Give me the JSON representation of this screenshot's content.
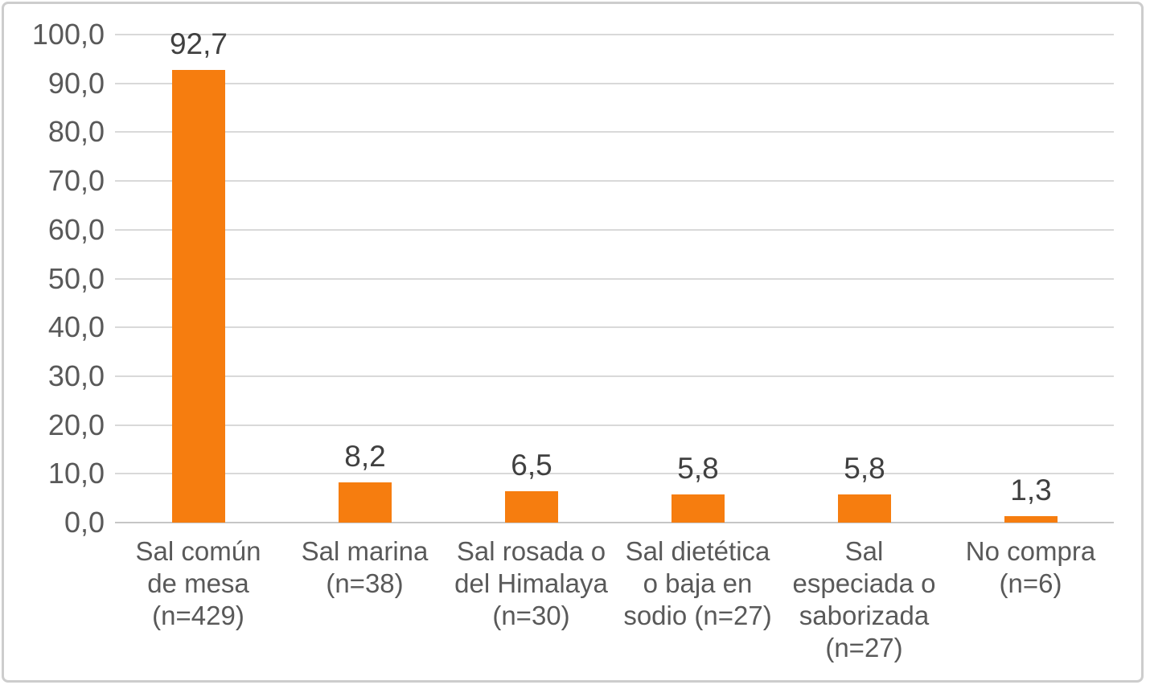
{
  "window": {
    "background": "#ffffff",
    "frame_border_color": "#cdcdcd"
  },
  "chart_data": {
    "type": "bar",
    "title": "",
    "xlabel": "",
    "ylabel": "",
    "categories": [
      "Sal común\nde mesa\n(n=429)",
      "Sal marina\n(n=38)",
      "Sal rosada o\ndel Himalaya\n(n=30)",
      "Sal dietética\no baja en\nsodio (n=27)",
      "Sal\nespeciada o\nsaborizada\n(n=27)",
      "No compra\n(n=6)"
    ],
    "values": [
      92.7,
      8.2,
      6.5,
      5.8,
      5.8,
      1.3
    ],
    "value_labels": [
      "92,7",
      "8,2",
      "6,5",
      "5,8",
      "5,8",
      "1,3"
    ],
    "ylim": [
      0,
      100
    ],
    "y_tick_step": 10,
    "y_tick_labels": [
      "0,0",
      "10,0",
      "20,0",
      "30,0",
      "40,0",
      "50,0",
      "60,0",
      "70,0",
      "80,0",
      "90,0",
      "100,0"
    ],
    "grid": true,
    "legend": false,
    "decimal_separator": ",",
    "colors": {
      "bar": "#F67D0F",
      "gridline": "#D9D9D9",
      "axis_line": "#C6C6C6",
      "tick_label": "#595959",
      "category_label": "#595959",
      "value_label": "#404040"
    }
  }
}
